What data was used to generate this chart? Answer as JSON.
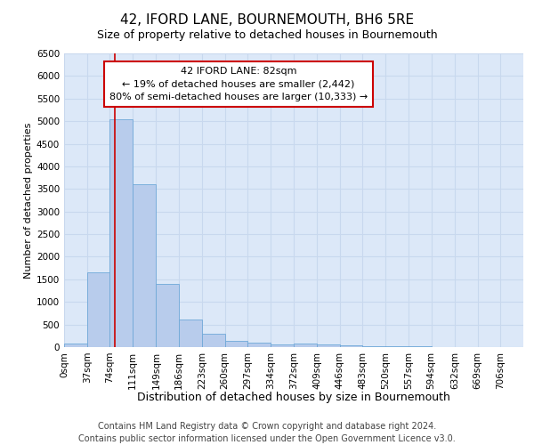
{
  "title": "42, IFORD LANE, BOURNEMOUTH, BH6 5RE",
  "subtitle": "Size of property relative to detached houses in Bournemouth",
  "xlabel": "Distribution of detached houses by size in Bournemouth",
  "ylabel": "Number of detached properties",
  "footer_line1": "Contains HM Land Registry data © Crown copyright and database right 2024.",
  "footer_line2": "Contains public sector information licensed under the Open Government Licence v3.0.",
  "bar_edges": [
    0,
    37,
    74,
    111,
    149,
    186,
    223,
    260,
    297,
    334,
    372,
    409,
    446,
    483,
    520,
    557,
    594,
    632,
    669,
    706,
    743
  ],
  "bar_values": [
    75,
    1650,
    5050,
    3600,
    1400,
    620,
    290,
    140,
    100,
    60,
    75,
    50,
    30,
    20,
    15,
    10,
    5,
    5,
    5,
    5
  ],
  "bar_color": "#b8ccec",
  "bar_edgecolor": "#6fa8d8",
  "property_line_x": 82,
  "annotation_line1": "42 IFORD LANE: 82sqm",
  "annotation_line2": "← 19% of detached houses are smaller (2,442)",
  "annotation_line3": "80% of semi-detached houses are larger (10,333) →",
  "annotation_box_facecolor": "#ffffff",
  "annotation_box_edgecolor": "#cc0000",
  "property_line_color": "#cc0000",
  "ylim": [
    0,
    6500
  ],
  "yticks": [
    0,
    500,
    1000,
    1500,
    2000,
    2500,
    3000,
    3500,
    4000,
    4500,
    5000,
    5500,
    6000,
    6500
  ],
  "grid_color": "#c8d8ee",
  "background_color": "#dce8f8",
  "title_fontsize": 11,
  "subtitle_fontsize": 9,
  "xlabel_fontsize": 9,
  "ylabel_fontsize": 8,
  "tick_fontsize": 7.5,
  "annotation_fontsize": 8,
  "footer_fontsize": 7
}
